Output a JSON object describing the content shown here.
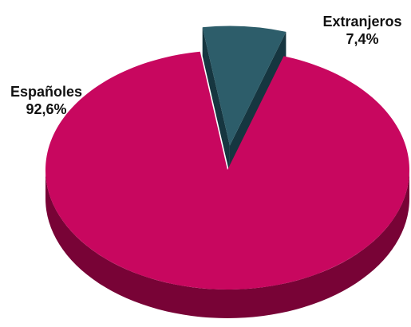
{
  "chart_data": {
    "type": "pie",
    "style": "3d-exploded",
    "slices": [
      {
        "label": "Españoles",
        "value": 92.6,
        "value_label": "92,6%",
        "color": "#C8075F",
        "side_color": "#780336"
      },
      {
        "label": "Extranjeros",
        "value": 7.4,
        "value_label": "7,4%",
        "color": "#2D5D6A",
        "side_color": "#163640"
      }
    ],
    "legend": "none"
  }
}
